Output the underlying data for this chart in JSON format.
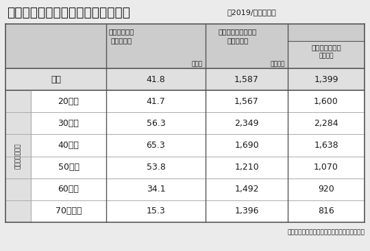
{
  "title_main": "借入金のある世帯の割合と借入残高",
  "title_sub": "（2019/令和元年）",
  "col_headers_c1_line1": "借入金のある",
  "col_headers_c1_line2": "世帯の割合",
  "col_headers_c1_unit": "（％）",
  "col_headers_c2_line1": "借入金のある世帯の",
  "col_headers_c2_line2": "借入金残高",
  "col_headers_c2_unit": "（万円）",
  "col_headers_c3": "住宅ローン残高",
  "col_headers_c3_unit": "（万円）",
  "row_label_group": "世帯主の年齢別",
  "rows": [
    {
      "label": "全体",
      "v1": "41.8",
      "v2": "1,587",
      "v3": "1,399",
      "is_overall": true
    },
    {
      "label": "20歳代",
      "v1": "41.7",
      "v2": "1,567",
      "v3": "1,600",
      "is_overall": false
    },
    {
      "label": "30歳代",
      "v1": "56.3",
      "v2": "2,349",
      "v3": "2,284",
      "is_overall": false
    },
    {
      "label": "40歳代",
      "v1": "65.3",
      "v2": "1,690",
      "v3": "1,638",
      "is_overall": false
    },
    {
      "label": "50歳代",
      "v1": "53.8",
      "v2": "1,210",
      "v3": "1,070",
      "is_overall": false
    },
    {
      "label": "60歳代",
      "v1": "34.1",
      "v2": "1,492",
      "v3": "920",
      "is_overall": false
    },
    {
      "label": "70歳以上",
      "v1": "15.3",
      "v2": "1,396",
      "v3": "816",
      "is_overall": false
    }
  ],
  "footnote": "（「知るぽると」ホームページをもとに作成）",
  "bg_color": "#ebebeb",
  "header_bg": "#cccccc",
  "cell_bg_white": "#ffffff",
  "cell_bg_gray": "#e0e0e0",
  "cell_bg_overall": "#e0e0e0",
  "col3_header_bg": "#d4d4d4",
  "line_color_light": "#aaaaaa",
  "line_color_dark": "#555555",
  "text_color": "#1a1a1a"
}
